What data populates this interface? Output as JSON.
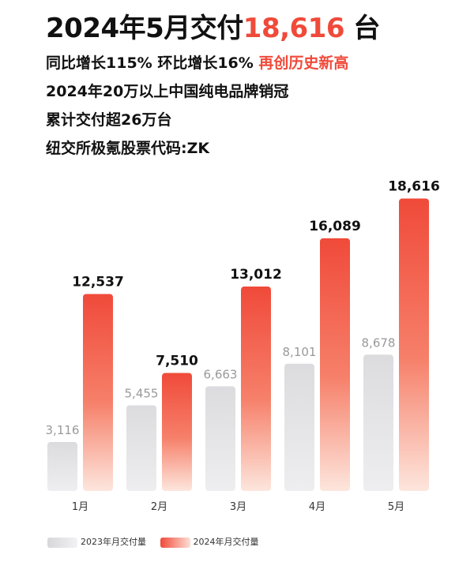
{
  "headline": {
    "main": "2024年5月交付",
    "number": "18,616",
    "unit": " 台"
  },
  "lines": [
    {
      "text": "同比增长115% 环比增长16% ",
      "accent": "再创历史新高"
    },
    {
      "text": "2024年20万以上中国纯电品牌销冠",
      "accent": ""
    },
    {
      "text": "累计交付超26万台",
      "accent": ""
    },
    {
      "text": "纽交所极氪股票代码:ZK",
      "accent": ""
    }
  ],
  "colors": {
    "accent": "#f04a3a",
    "gray_bar": "#dcdcdf",
    "red_bar": "#f04a3a"
  },
  "chart_data": {
    "type": "bar",
    "categories": [
      "1月",
      "2月",
      "3月",
      "4月",
      "5月"
    ],
    "series": [
      {
        "name": "2023年月交付量",
        "values": [
          3116,
          5455,
          6663,
          8101,
          8678
        ],
        "labels": [
          "3,116",
          "5,455",
          "6,663",
          "8,101",
          "8,678"
        ]
      },
      {
        "name": "2024年月交付量",
        "values": [
          12537,
          7510,
          13012,
          16089,
          18616
        ],
        "labels": [
          "12,537",
          "7,510",
          "13,012",
          "16,089",
          "18,616"
        ]
      }
    ],
    "ylim": [
      0,
      20000
    ],
    "grid": false,
    "legend": "bottom-left"
  }
}
